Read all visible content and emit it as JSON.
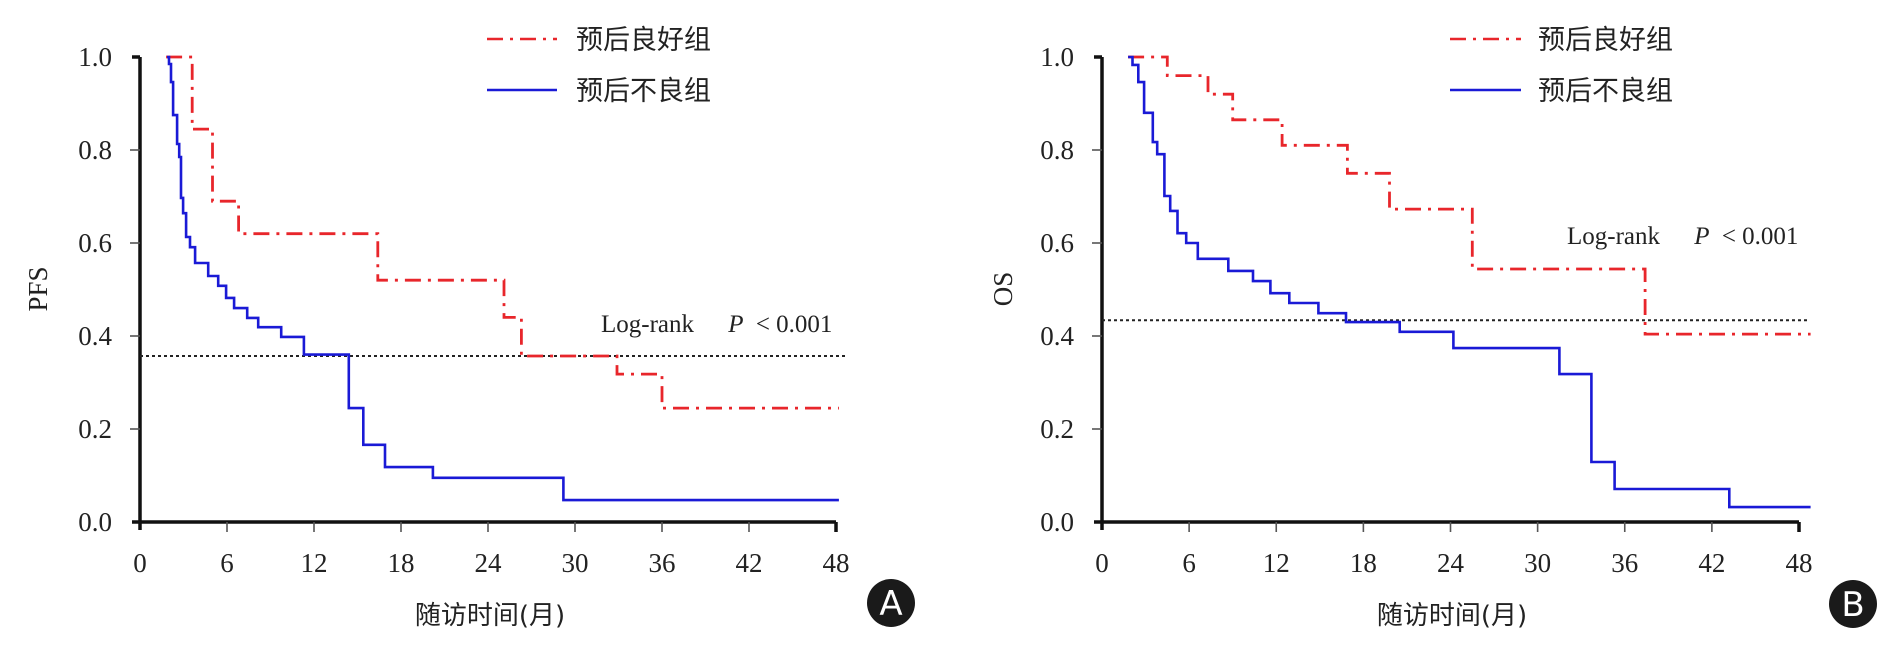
{
  "colors": {
    "good": "#e8262b",
    "poor": "#1a1ad6",
    "axis": "#111111",
    "median": "#222222",
    "badge": "#1a1a1a"
  },
  "chart_data": [
    {
      "type": "line",
      "panel_label": "A",
      "ylabel": "PFS",
      "xlabel": "随访时间(月)",
      "xlim": [
        0,
        48
      ],
      "ylim": [
        0,
        1.0
      ],
      "x_ticks": [
        "0",
        "6",
        "12",
        "18",
        "24",
        "30",
        "36",
        "42",
        "48"
      ],
      "y_ticks": [
        "0.0",
        "0.2",
        "0.4",
        "0.6",
        "0.8",
        "1.0"
      ],
      "grid": false,
      "legend_position": "top-right",
      "annotation": {
        "test": "Log-rank",
        "p_symbol": "P",
        "p_value": "< 0.001"
      },
      "median_line": 0.357,
      "series": [
        {
          "name": "预后良好组",
          "style": "dash-dot",
          "steps": [
            [
              1.8,
              1.0
            ],
            [
              3.6,
              0.845
            ],
            [
              5.0,
              0.69
            ],
            [
              6.8,
              0.62
            ],
            [
              16.4,
              0.52
            ],
            [
              25.1,
              0.44
            ],
            [
              26.3,
              0.357
            ],
            [
              32.9,
              0.318
            ],
            [
              36.0,
              0.245
            ]
          ],
          "end": 48.2
        },
        {
          "name": "预后不良组",
          "style": "solid",
          "steps": [
            [
              1.86,
              1.0
            ],
            [
              2.0,
              0.985
            ],
            [
              2.14,
              0.946
            ],
            [
              2.28,
              0.875
            ],
            [
              2.56,
              0.813
            ],
            [
              2.7,
              0.785
            ],
            [
              2.83,
              0.697
            ],
            [
              2.97,
              0.664
            ],
            [
              3.18,
              0.613
            ],
            [
              3.45,
              0.591
            ],
            [
              3.8,
              0.557
            ],
            [
              4.7,
              0.529
            ],
            [
              5.39,
              0.508
            ],
            [
              5.94,
              0.482
            ],
            [
              6.49,
              0.46
            ],
            [
              7.39,
              0.439
            ],
            [
              8.15,
              0.419
            ],
            [
              9.74,
              0.398
            ],
            [
              11.3,
              0.36
            ],
            [
              14.4,
              0.245
            ],
            [
              15.4,
              0.166
            ],
            [
              16.9,
              0.118
            ],
            [
              20.2,
              0.095
            ],
            [
              29.2,
              0.047
            ]
          ],
          "end": 48.2
        }
      ]
    },
    {
      "type": "line",
      "panel_label": "B",
      "ylabel": "OS",
      "xlabel": "随访时间(月)",
      "xlim": [
        0,
        48
      ],
      "ylim": [
        0,
        1.0
      ],
      "x_ticks": [
        "0",
        "6",
        "12",
        "18",
        "24",
        "30",
        "36",
        "42",
        "48"
      ],
      "y_ticks": [
        "0.0",
        "0.2",
        "0.4",
        "0.6",
        "0.8",
        "1.0"
      ],
      "grid": false,
      "legend_position": "top-right",
      "annotation": {
        "test": "Log-rank",
        "p_symbol": "P",
        "p_value": "< 0.001"
      },
      "median_line": 0.434,
      "series": [
        {
          "name": "预后良好组",
          "style": "dash-dot",
          "steps": [
            [
              1.8,
              1.0
            ],
            [
              4.5,
              0.96
            ],
            [
              7.3,
              0.92
            ],
            [
              9.0,
              0.865
            ],
            [
              12.4,
              0.81
            ],
            [
              16.9,
              0.75
            ],
            [
              19.8,
              0.673
            ],
            [
              25.5,
              0.544
            ],
            [
              37.4,
              0.404
            ]
          ],
          "end": 48.8
        },
        {
          "name": "预后不良组",
          "style": "solid",
          "steps": [
            [
              1.8,
              1.0
            ],
            [
              2.1,
              0.983
            ],
            [
              2.5,
              0.946
            ],
            [
              2.9,
              0.88
            ],
            [
              3.5,
              0.817
            ],
            [
              3.8,
              0.791
            ],
            [
              4.3,
              0.701
            ],
            [
              4.7,
              0.669
            ],
            [
              5.2,
              0.621
            ],
            [
              5.8,
              0.6
            ],
            [
              6.6,
              0.566
            ],
            [
              8.7,
              0.54
            ],
            [
              10.4,
              0.518
            ],
            [
              11.6,
              0.492
            ],
            [
              12.9,
              0.471
            ],
            [
              14.9,
              0.449
            ],
            [
              16.8,
              0.43
            ],
            [
              20.5,
              0.409
            ],
            [
              24.2,
              0.374
            ],
            [
              31.5,
              0.318
            ],
            [
              33.7,
              0.129
            ],
            [
              35.3,
              0.071
            ],
            [
              43.2,
              0.032
            ]
          ],
          "end": 48.8
        }
      ]
    }
  ]
}
